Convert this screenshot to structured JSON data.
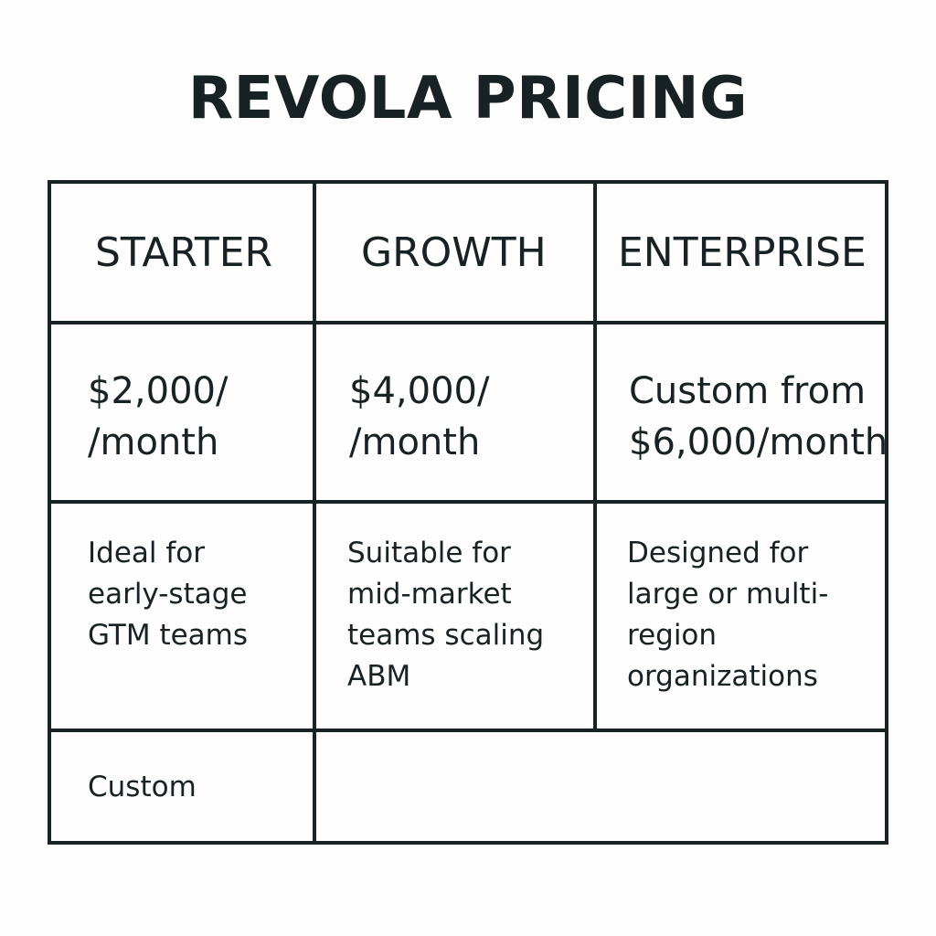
{
  "title": "REVOLA PRICING",
  "plans": [
    {
      "name": "STARTER",
      "price": "$2,000/\n/month",
      "description": "Ideal for\nearly-stage\nGTM teams"
    },
    {
      "name": "GROWTH",
      "price": "$4,000/\n/month",
      "description": "Suitable for\nmid-market\nteams scaling\nABM"
    },
    {
      "name": "ENTERPRISE",
      "price": "Custom from\n$6,000/month",
      "description": "Designed for\nlarge or multi-\nregion\norganizations"
    }
  ],
  "footer_row": {
    "label": "Custom",
    "value": ""
  }
}
